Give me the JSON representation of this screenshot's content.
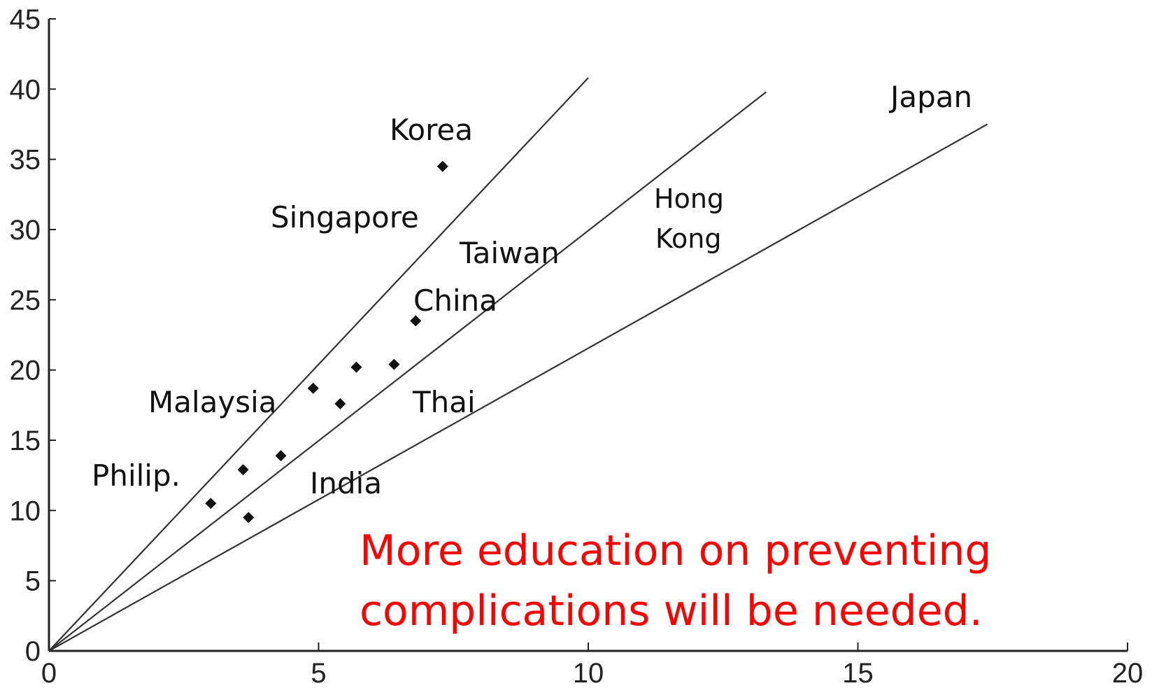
{
  "chart_data": {
    "type": "scatter",
    "title": "",
    "xlabel": "",
    "ylabel": "",
    "xlim": [
      0,
      20
    ],
    "ylim": [
      0,
      45
    ],
    "x_ticks": [
      "0",
      "5",
      "10",
      "15",
      "20"
    ],
    "y_ticks": [
      "0",
      "5",
      "10",
      "15",
      "20",
      "25",
      "30",
      "35",
      "40",
      "45"
    ],
    "points": [
      {
        "x": 7.3,
        "y": 34.5
      },
      {
        "x": 6.8,
        "y": 23.5
      },
      {
        "x": 6.4,
        "y": 20.4
      },
      {
        "x": 5.7,
        "y": 20.2
      },
      {
        "x": 4.9,
        "y": 18.7
      },
      {
        "x": 5.4,
        "y": 17.6
      },
      {
        "x": 4.3,
        "y": 13.9
      },
      {
        "x": 3.6,
        "y": 12.9
      },
      {
        "x": 3.0,
        "y": 10.5
      },
      {
        "x": 3.7,
        "y": 9.5
      }
    ],
    "reference_lines": [
      {
        "x_end": 10.0,
        "y_end": 40.8
      },
      {
        "x_end": 13.3,
        "y_end": 39.8
      },
      {
        "x_end": 17.4,
        "y_end": 37.5
      }
    ],
    "country_labels": [
      "Korea",
      "Singapore",
      "Taiwan",
      "China",
      "Malaysia",
      "Thai",
      "Philip.",
      "India",
      "Japan",
      "Hong",
      "Kong"
    ],
    "annotation": {
      "lines": [
        "More education on preventing",
        "complications will be needed."
      ],
      "color": "#ff0000"
    },
    "grid": false,
    "legend": "none"
  }
}
